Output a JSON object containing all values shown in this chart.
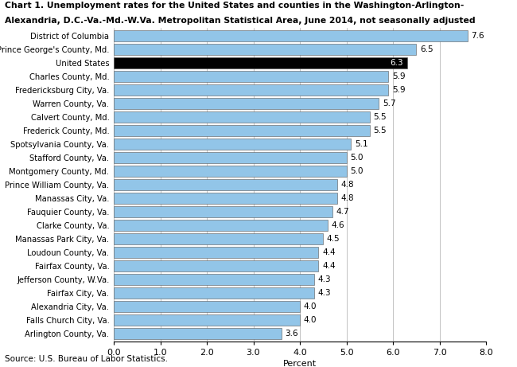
{
  "title_line1": "Chart 1. Unemployment rates for the United States and counties in the Washington-Arlington-",
  "title_line2": "Alexandria, D.C.-Va.-Md.-W.Va. Metropolitan Statistical Area, June 2014, not seasonally adjusted",
  "categories": [
    "District of Columbia",
    "Prince George's County, Md.",
    "United States",
    "Charles County, Md.",
    "Fredericksburg City, Va.",
    "Warren County, Va.",
    "Calvert County, Md.",
    "Frederick County, Md.",
    "Spotsylvania County, Va.",
    "Stafford County, Va.",
    "Montgomery County, Md.",
    "Prince William County, Va.",
    "Manassas City, Va.",
    "Fauquier County, Va.",
    "Clarke County, Va.",
    "Manassas Park City, Va.",
    "Loudoun County, Va.",
    "Fairfax County, Va.",
    "Jefferson County, W.Va.",
    "Fairfax City, Va.",
    "Alexandria City, Va.",
    "Falls Church City, Va.",
    "Arlington County, Va."
  ],
  "values": [
    7.6,
    6.5,
    6.3,
    5.9,
    5.9,
    5.7,
    5.5,
    5.5,
    5.1,
    5.0,
    5.0,
    4.8,
    4.8,
    4.7,
    4.6,
    4.5,
    4.4,
    4.4,
    4.3,
    4.3,
    4.0,
    4.0,
    3.6
  ],
  "bar_colors": [
    "#92c5e8",
    "#92c5e8",
    "#000000",
    "#92c5e8",
    "#92c5e8",
    "#92c5e8",
    "#92c5e8",
    "#92c5e8",
    "#92c5e8",
    "#92c5e8",
    "#92c5e8",
    "#92c5e8",
    "#92c5e8",
    "#92c5e8",
    "#92c5e8",
    "#92c5e8",
    "#92c5e8",
    "#92c5e8",
    "#92c5e8",
    "#92c5e8",
    "#92c5e8",
    "#92c5e8",
    "#92c5e8"
  ],
  "bar_edge_color": "#555555",
  "xlabel": "Percent",
  "xlim": [
    0,
    8.0
  ],
  "xticks": [
    0.0,
    1.0,
    2.0,
    3.0,
    4.0,
    5.0,
    6.0,
    7.0,
    8.0
  ],
  "xtick_labels": [
    "0.0",
    "1.0",
    "2.0",
    "3.0",
    "4.0",
    "5.0",
    "6.0",
    "7.0",
    "8.0"
  ],
  "source": "Source: U.S. Bureau of Labor Statistics.",
  "background_color": "#ffffff"
}
